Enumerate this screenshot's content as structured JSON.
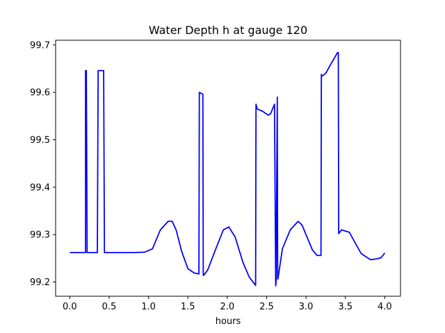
{
  "chart_data": {
    "type": "line",
    "title": "Water Depth h at gauge 120",
    "xlabel": "hours",
    "ylabel": "",
    "xlim": [
      -0.18,
      4.2
    ],
    "ylim": [
      99.17,
      99.71
    ],
    "xticks": [
      0.0,
      0.5,
      1.0,
      1.5,
      2.0,
      2.5,
      3.0,
      3.5,
      4.0
    ],
    "xtick_labels": [
      "0.0",
      "0.5",
      "1.0",
      "1.5",
      "2.0",
      "2.5",
      "3.0",
      "3.5",
      "4.0"
    ],
    "yticks": [
      99.2,
      99.3,
      99.4,
      99.5,
      99.6,
      99.7
    ],
    "ytick_labels": [
      "99.2",
      "99.3",
      "99.4",
      "99.5",
      "99.6",
      "99.7"
    ],
    "grid": false,
    "series": [
      {
        "color": "#0000ff",
        "x": [
          0.0,
          0.2,
          0.2,
          0.21,
          0.22,
          0.22,
          0.35,
          0.36,
          0.43,
          0.44,
          0.5,
          0.8,
          0.95,
          1.05,
          1.15,
          1.25,
          1.3,
          1.35,
          1.42,
          1.5,
          1.58,
          1.64,
          1.645,
          1.69,
          1.695,
          1.7,
          1.75,
          1.85,
          1.95,
          2.02,
          2.1,
          2.2,
          2.28,
          2.36,
          2.365,
          2.38,
          2.45,
          2.52,
          2.55,
          2.6,
          2.615,
          2.62,
          2.635,
          2.64,
          2.645,
          2.66,
          2.7,
          2.8,
          2.9,
          2.95,
          3.0,
          3.08,
          3.14,
          3.19,
          3.195,
          3.2,
          3.25,
          3.3,
          3.4,
          3.41,
          3.415,
          3.45,
          3.55,
          3.6,
          3.7,
          3.82,
          3.9,
          3.95,
          4.0
        ],
        "y": [
          99.262,
          99.262,
          99.646,
          99.646,
          99.262,
          99.262,
          99.262,
          99.646,
          99.646,
          99.262,
          99.262,
          99.262,
          99.263,
          99.27,
          99.31,
          99.328,
          99.328,
          99.31,
          99.265,
          99.228,
          99.219,
          99.217,
          99.6,
          99.596,
          99.214,
          99.214,
          99.225,
          99.268,
          99.31,
          99.316,
          99.295,
          99.241,
          99.21,
          99.193,
          99.575,
          99.565,
          99.56,
          99.552,
          99.555,
          99.575,
          99.192,
          99.2,
          99.59,
          99.206,
          99.208,
          99.225,
          99.27,
          99.31,
          99.328,
          99.32,
          99.3,
          99.268,
          99.256,
          99.256,
          99.638,
          99.634,
          99.64,
          99.655,
          99.684,
          99.684,
          99.302,
          99.31,
          99.305,
          99.29,
          99.26,
          99.247,
          99.249,
          99.251,
          99.261
        ]
      }
    ]
  }
}
